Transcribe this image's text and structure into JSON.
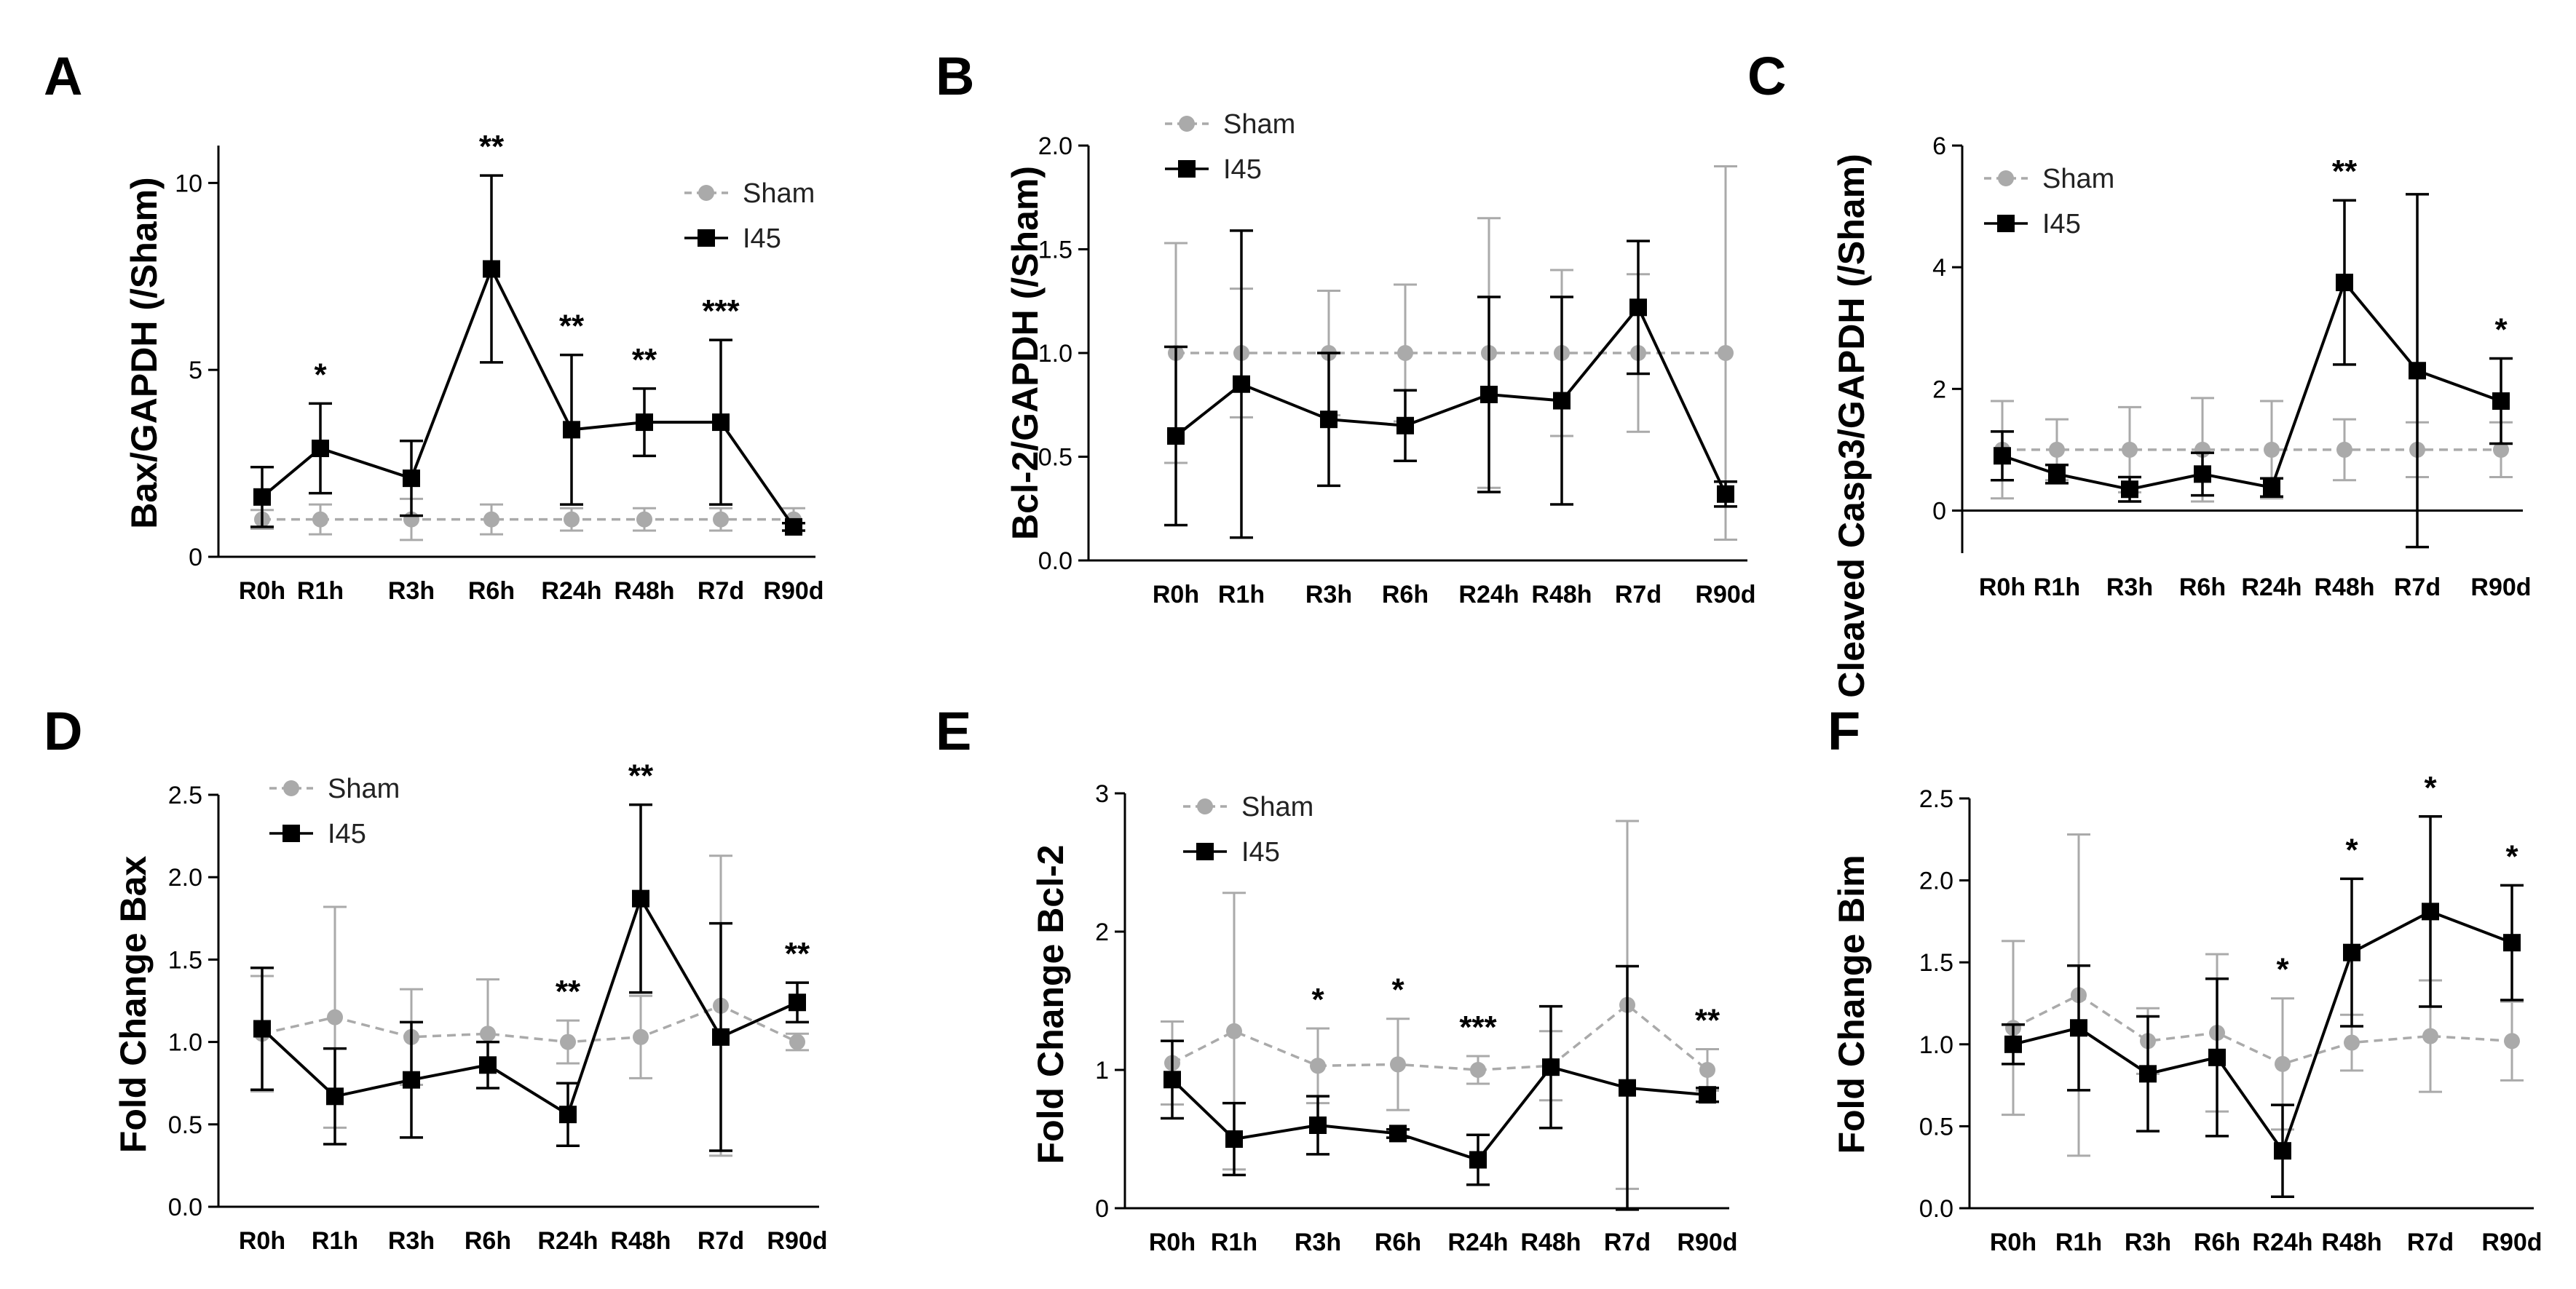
{
  "chart_data": [
    {
      "panel": "A",
      "type": "line",
      "ylabel": "Bax/GAPDH (/Sham)",
      "ylim": [
        0,
        11
      ],
      "yticks": [
        0,
        5,
        10
      ],
      "ytick_labels": [
        "0",
        "5",
        "10"
      ],
      "categories": [
        "R0h",
        "R1h",
        "R3h",
        "R6h",
        "R24h",
        "R48h",
        "R7d",
        "R90d"
      ],
      "legend": [
        "Sham",
        "I45"
      ],
      "legend_position": "top-right",
      "series": [
        {
          "name": "Sham",
          "color": "#aaaaaa",
          "dashed": true,
          "values": [
            1,
            1,
            1,
            1,
            1,
            1,
            1,
            1
          ],
          "err_low": [
            0.25,
            0.4,
            0.55,
            0.4,
            0.3,
            0.3,
            0.3,
            0.3
          ],
          "err_high": [
            0.25,
            0.4,
            0.55,
            0.4,
            0.3,
            0.3,
            0.3,
            0.3
          ]
        },
        {
          "name": "I45",
          "color": "#000000",
          "dashed": false,
          "values": [
            1.6,
            2.9,
            2.1,
            7.7,
            3.4,
            3.6,
            3.6,
            0.8
          ],
          "err_low": [
            0.8,
            1.2,
            1.0,
            2.5,
            2.0,
            0.9,
            2.2,
            0.1
          ],
          "err_high": [
            0.8,
            1.2,
            1.0,
            2.5,
            2.0,
            0.9,
            2.2,
            0.1
          ]
        }
      ],
      "significance": [
        "",
        "*",
        "",
        "**",
        "**",
        "**",
        "***",
        ""
      ]
    },
    {
      "panel": "B",
      "type": "line",
      "ylabel": "Bcl-2/GAPDH (/Sham)",
      "ylim": [
        0,
        2.0
      ],
      "yticks": [
        0,
        0.5,
        1.0,
        1.5,
        2.0
      ],
      "ytick_labels": [
        "0.0",
        "0.5",
        "1.0",
        "1.5",
        "2.0"
      ],
      "categories": [
        "R0h",
        "R1h",
        "R3h",
        "R6h",
        "R24h",
        "R48h",
        "R7d",
        "R90d"
      ],
      "legend": [
        "Sham",
        "I45"
      ],
      "legend_position": "top-left",
      "series": [
        {
          "name": "Sham",
          "color": "#aaaaaa",
          "dashed": true,
          "values": [
            1,
            1,
            1,
            1,
            1,
            1,
            1,
            1
          ],
          "err_low": [
            0.53,
            0.31,
            0.3,
            0.33,
            0.65,
            0.4,
            0.38,
            0.9
          ],
          "err_high": [
            0.53,
            0.31,
            0.3,
            0.33,
            0.65,
            0.4,
            0.38,
            0.9
          ]
        },
        {
          "name": "I45",
          "color": "#000000",
          "dashed": false,
          "values": [
            0.6,
            0.85,
            0.68,
            0.65,
            0.8,
            0.77,
            1.22,
            0.32
          ],
          "err_low": [
            0.43,
            0.74,
            0.32,
            0.17,
            0.47,
            0.5,
            0.32,
            0.06
          ],
          "err_high": [
            0.43,
            0.74,
            0.32,
            0.17,
            0.47,
            0.5,
            0.32,
            0.06
          ]
        }
      ],
      "significance": [
        "",
        "",
        "",
        "",
        "",
        "",
        "",
        ""
      ]
    },
    {
      "panel": "C",
      "type": "line",
      "ylabel": "Cleaved Casp3/GAPDH (/Sham)",
      "ylim": [
        -0.7,
        6
      ],
      "yticks": [
        0,
        2,
        4,
        6
      ],
      "ytick_labels": [
        "0",
        "2",
        "4",
        "6"
      ],
      "categories": [
        "R0h",
        "R1h",
        "R3h",
        "R6h",
        "R24h",
        "R48h",
        "R7d",
        "R90d"
      ],
      "legend": [
        "Sham",
        "I45"
      ],
      "legend_position": "top-left",
      "series": [
        {
          "name": "Sham",
          "color": "#aaaaaa",
          "dashed": true,
          "values": [
            1,
            1,
            1,
            1,
            1,
            1,
            1,
            1
          ],
          "err_low": [
            0.8,
            0.5,
            0.7,
            0.85,
            0.8,
            0.5,
            0.45,
            0.45
          ],
          "err_high": [
            0.8,
            0.5,
            0.7,
            0.85,
            0.8,
            0.5,
            0.45,
            0.45
          ]
        },
        {
          "name": "I45",
          "color": "#000000",
          "dashed": false,
          "values": [
            0.9,
            0.6,
            0.35,
            0.6,
            0.38,
            3.75,
            2.3,
            1.8
          ],
          "err_low": [
            0.4,
            0.15,
            0.2,
            0.35,
            0.15,
            1.35,
            2.9,
            0.7
          ],
          "err_high": [
            0.4,
            0.15,
            0.2,
            0.35,
            0.15,
            1.35,
            2.9,
            0.7
          ]
        }
      ],
      "significance": [
        "",
        "",
        "",
        "",
        "",
        "**",
        "",
        "*"
      ]
    },
    {
      "panel": "D",
      "type": "line",
      "ylabel": "Fold Change Bax",
      "ylim": [
        0,
        2.5
      ],
      "yticks": [
        0,
        0.5,
        1.0,
        1.5,
        2.0,
        2.5
      ],
      "ytick_labels": [
        "0.0",
        "0.5",
        "1.0",
        "1.5",
        "2.0",
        "2.5"
      ],
      "categories": [
        "R0h",
        "R1h",
        "R3h",
        "R6h",
        "R24h",
        "R48h",
        "R7d",
        "R90d"
      ],
      "legend": [
        "Sham",
        "I45"
      ],
      "legend_position": "top-left",
      "series": [
        {
          "name": "Sham",
          "color": "#aaaaaa",
          "dashed": true,
          "values": [
            1.05,
            1.15,
            1.03,
            1.05,
            1.0,
            1.03,
            1.22,
            1.0
          ],
          "err_low": [
            0.35,
            0.67,
            0.29,
            0.33,
            0.13,
            0.25,
            0.91,
            0.05
          ],
          "err_high": [
            0.35,
            0.67,
            0.29,
            0.33,
            0.13,
            0.25,
            0.91,
            0.05
          ]
        },
        {
          "name": "I45",
          "color": "#000000",
          "dashed": false,
          "values": [
            1.08,
            0.67,
            0.77,
            0.86,
            0.56,
            1.87,
            1.03,
            1.24
          ],
          "err_low": [
            0.37,
            0.29,
            0.35,
            0.14,
            0.19,
            0.57,
            0.69,
            0.12
          ],
          "err_high": [
            0.37,
            0.29,
            0.35,
            0.14,
            0.19,
            0.57,
            0.69,
            0.12
          ]
        }
      ],
      "significance": [
        "",
        "",
        "",
        "",
        "**",
        "**",
        "",
        "**"
      ]
    },
    {
      "panel": "E",
      "type": "line",
      "ylabel": "Fold Change Bcl-2",
      "ylim": [
        0,
        3
      ],
      "yticks": [
        0,
        1,
        2,
        3
      ],
      "ytick_labels": [
        "0",
        "1",
        "2",
        "3"
      ],
      "categories": [
        "R0h",
        "R1h",
        "R3h",
        "R6h",
        "R24h",
        "R48h",
        "R7d",
        "R90d"
      ],
      "legend": [
        "Sham",
        "I45"
      ],
      "legend_position": "top-left",
      "series": [
        {
          "name": "Sham",
          "color": "#aaaaaa",
          "dashed": true,
          "values": [
            1.05,
            1.28,
            1.03,
            1.04,
            1.0,
            1.03,
            1.47,
            1.0
          ],
          "err_low": [
            0.3,
            1.0,
            0.27,
            0.33,
            0.1,
            0.25,
            1.33,
            0.15
          ],
          "err_high": [
            0.3,
            1.0,
            0.27,
            0.33,
            0.1,
            0.25,
            1.33,
            0.15
          ]
        },
        {
          "name": "I45",
          "color": "#000000",
          "dashed": false,
          "values": [
            0.93,
            0.5,
            0.6,
            0.54,
            0.35,
            1.02,
            0.87,
            0.82
          ],
          "err_low": [
            0.28,
            0.26,
            0.21,
            0.03,
            0.18,
            0.44,
            0.88,
            0.05
          ],
          "err_high": [
            0.28,
            0.26,
            0.21,
            0.03,
            0.18,
            0.44,
            0.88,
            0.05
          ]
        }
      ],
      "significance": [
        "",
        "",
        "*",
        "*",
        "***",
        "",
        "",
        "**"
      ]
    },
    {
      "panel": "F",
      "type": "line",
      "ylabel": "Fold Change Bim",
      "ylim": [
        0,
        2.5
      ],
      "yticks": [
        0,
        0.5,
        1.0,
        1.5,
        2.0,
        2.5
      ],
      "ytick_labels": [
        "0.0",
        "0.5",
        "1.0",
        "1.5",
        "2.0",
        "2.5"
      ],
      "categories": [
        "R0h",
        "R1h",
        "R3h",
        "R6h",
        "R24h",
        "R48h",
        "R7d",
        "R90d"
      ],
      "legend": [],
      "legend_position": "none",
      "series": [
        {
          "name": "Sham",
          "color": "#aaaaaa",
          "dashed": true,
          "values": [
            1.1,
            1.3,
            1.02,
            1.07,
            0.88,
            1.01,
            1.05,
            1.02
          ],
          "err_low": [
            0.53,
            0.98,
            0.2,
            0.48,
            0.4,
            0.17,
            0.34,
            0.24
          ],
          "err_high": [
            0.53,
            0.98,
            0.2,
            0.48,
            0.4,
            0.17,
            0.34,
            0.24
          ]
        },
        {
          "name": "I45",
          "color": "#000000",
          "dashed": false,
          "values": [
            1.0,
            1.1,
            0.82,
            0.92,
            0.35,
            1.56,
            1.81,
            1.62
          ],
          "err_low": [
            0.12,
            0.38,
            0.35,
            0.48,
            0.28,
            0.45,
            0.58,
            0.35
          ],
          "err_high": [
            0.12,
            0.38,
            0.35,
            0.48,
            0.28,
            0.45,
            0.58,
            0.35
          ]
        }
      ],
      "significance": [
        "",
        "",
        "",
        "",
        "*",
        "*",
        "*",
        "*"
      ]
    }
  ]
}
